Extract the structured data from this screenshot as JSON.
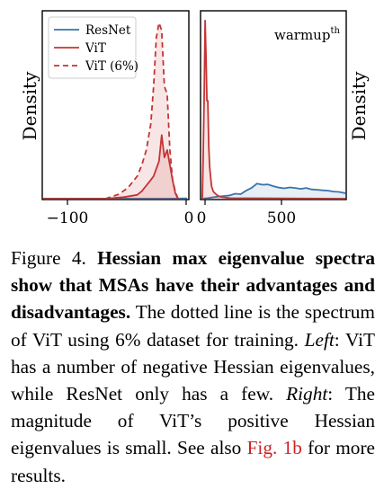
{
  "figure": {
    "legend": [
      {
        "label": "ResNet",
        "style": "solid",
        "color": "#3a73ab"
      },
      {
        "label": "ViT",
        "style": "solid",
        "color": "#c43434"
      },
      {
        "label": "ViT (6%)",
        "style": "dashed",
        "color": "#c43434"
      }
    ],
    "left_panel": {
      "ylabel": "Density",
      "xticks": [
        "−100",
        "0"
      ]
    },
    "right_panel": {
      "ylabel": "Density",
      "annotation_base": "warmup",
      "annotation_sup": "th",
      "xticks": [
        "0",
        "500"
      ]
    }
  },
  "chart_data": [
    {
      "type": "area",
      "panel": "left",
      "ylabel": "Density",
      "xlim": [
        -160,
        2
      ],
      "series": [
        {
          "name": "ResNet",
          "x": [
            -160,
            -100,
            -50,
            -20,
            0
          ],
          "y": [
            0,
            0,
            0,
            0,
            0.001
          ]
        },
        {
          "name": "ViT",
          "x": [
            -160,
            -90,
            -70,
            -55,
            -50,
            -45,
            -40,
            -37,
            -34,
            -31,
            -28,
            -25,
            -22,
            -19,
            -16,
            -13,
            -10
          ],
          "y": [
            0,
            0,
            0.004,
            0.01,
            0.02,
            0.035,
            0.05,
            0.06,
            0.08,
            0.1,
            0.17,
            0.11,
            0.13,
            0.09,
            0.05,
            0.015,
            0
          ]
        },
        {
          "name": "ViT (6%)",
          "x": [
            -160,
            -90,
            -75,
            -65,
            -55,
            -50,
            -45,
            -40,
            -37,
            -34,
            -31,
            -28,
            -25,
            -22,
            -19,
            -16,
            -13,
            -10
          ],
          "y": [
            0,
            0,
            0.012,
            0.03,
            0.06,
            0.09,
            0.13,
            0.2,
            0.3,
            0.43,
            0.47,
            0.45,
            0.3,
            0.28,
            0.13,
            0.05,
            0.02,
            0
          ]
        }
      ]
    },
    {
      "type": "area",
      "panel": "right",
      "ylabel": "Density",
      "xlim": [
        -10,
        790
      ],
      "series": [
        {
          "name": "ResNet",
          "x": [
            0,
            30,
            60,
            90,
            120,
            150,
            180,
            210,
            240,
            270,
            300,
            330,
            360,
            390,
            420,
            450,
            480,
            510,
            540,
            570,
            600,
            630,
            660,
            690,
            720,
            750,
            790
          ],
          "y": [
            0,
            0.003,
            0.008,
            0.012,
            0.015,
            0.018,
            0.028,
            0.025,
            0.045,
            0.06,
            0.085,
            0.078,
            0.08,
            0.07,
            0.062,
            0.058,
            0.063,
            0.06,
            0.055,
            0.06,
            0.052,
            0.05,
            0.047,
            0.045,
            0.04,
            0.038,
            0.03
          ]
        },
        {
          "name": "ViT",
          "x": [
            0,
            5,
            10,
            15,
            20,
            25,
            30,
            35,
            40,
            50,
            60,
            70,
            80,
            100,
            150,
            790
          ],
          "y": [
            0,
            0.25,
            0.6,
            1.0,
            0.8,
            0.55,
            0.55,
            0.3,
            0.18,
            0.07,
            0.04,
            0.03,
            0.02,
            0.01,
            0.003,
            0
          ]
        }
      ]
    }
  ]
}
